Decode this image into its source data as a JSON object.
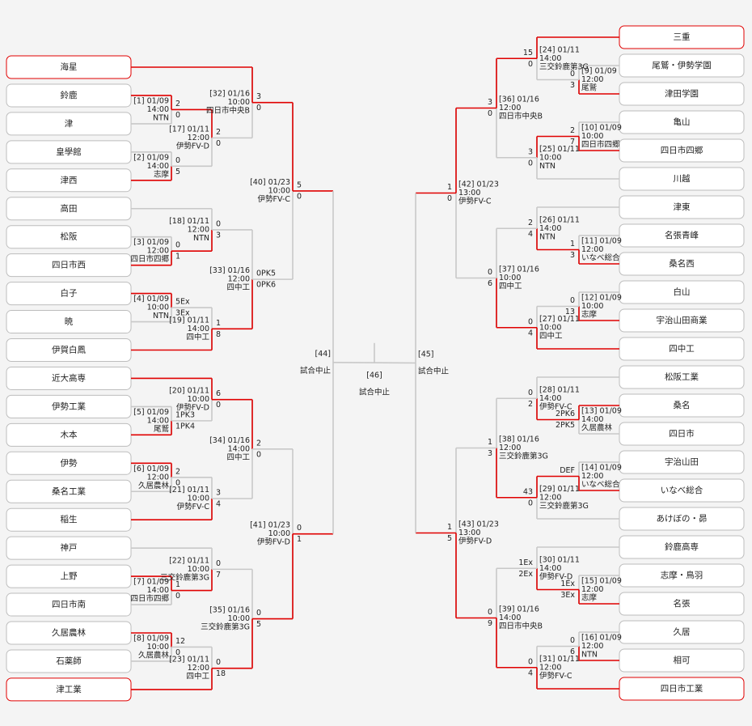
{
  "left": {
    "teams": [
      "海星",
      "鈴鹿",
      "津",
      "皇學館",
      "津西",
      "高田",
      "松阪",
      "四日市西",
      "白子",
      "暁",
      "伊賀白鳳",
      "近大高専",
      "伊勢工業",
      "木本",
      "伊勢",
      "桑名工業",
      "稲生",
      "神戸",
      "上野",
      "四日市南",
      "久居農林",
      "石薬師",
      "津工業"
    ],
    "matches": [
      {
        "lines": [
          "[1] 01/09",
          "14:00",
          "NTN"
        ],
        "scores": [
          "2",
          "0"
        ]
      },
      {
        "lines": [
          "[2] 01/09",
          "14:00",
          "志摩"
        ],
        "scores": [
          "0",
          "5"
        ]
      },
      {
        "lines": [
          "[17] 01/11",
          "12:00",
          "伊勢FV-D"
        ],
        "scores": [
          "2",
          "0"
        ]
      },
      {
        "lines": [
          "[32] 01/16",
          "10:00",
          "四日市中央B"
        ],
        "scores": [
          "3",
          "0"
        ]
      },
      {
        "lines": [
          "[3] 01/09",
          "12:00",
          "四日市四郷"
        ],
        "scores": [
          "0",
          "1"
        ]
      },
      {
        "lines": [
          "[18] 01/11",
          "12:00",
          "NTN"
        ],
        "scores": [
          "0",
          "3"
        ]
      },
      {
        "lines": [
          "[4] 01/09",
          "10:00",
          "NTN"
        ],
        "scores": [
          "5Ex",
          "3Ex"
        ]
      },
      {
        "lines": [
          "[19] 01/11",
          "14:00",
          "四中工"
        ],
        "scores": [
          "1",
          "8"
        ]
      },
      {
        "lines": [
          "[33] 01/16",
          "12:00",
          "四中工"
        ],
        "scores": [
          "0PK5",
          "0PK6"
        ]
      },
      {
        "lines": [
          "[40] 01/23",
          "10:00",
          "伊勢FV-C"
        ],
        "scores": [
          "5",
          "0"
        ]
      },
      {
        "lines": [
          "[5] 01/09",
          "14:00",
          "尾鷲"
        ],
        "scores": [
          "1PK3",
          "1PK4"
        ]
      },
      {
        "lines": [
          "[20] 01/11",
          "10:00",
          "伊勢FV-D"
        ],
        "scores": [
          "6",
          "0"
        ]
      },
      {
        "lines": [
          "[6] 01/09",
          "12:00",
          "久居農林"
        ],
        "scores": [
          "2",
          "0"
        ]
      },
      {
        "lines": [
          "[21] 01/11",
          "10:00",
          "伊勢FV-C"
        ],
        "scores": [
          "3",
          "4"
        ]
      },
      {
        "lines": [
          "[34] 01/16",
          "14:00",
          "四中工"
        ],
        "scores": [
          "2",
          "0"
        ]
      },
      {
        "lines": [
          "[7] 01/09",
          "14:00",
          "四日市四郷"
        ],
        "scores": [
          "1",
          "0"
        ]
      },
      {
        "lines": [
          "[22] 01/11",
          "10:00",
          "三交鈴鹿第3G"
        ],
        "scores": [
          "0",
          "7"
        ]
      },
      {
        "lines": [
          "[8] 01/09",
          "10:00",
          "久居農林"
        ],
        "scores": [
          "12",
          "0"
        ]
      },
      {
        "lines": [
          "[23] 01/11",
          "12:00",
          "四中工"
        ],
        "scores": [
          "0",
          "18"
        ]
      },
      {
        "lines": [
          "[35] 01/16",
          "10:00",
          "三交鈴鹿第3G"
        ],
        "scores": [
          "0",
          "5"
        ]
      },
      {
        "lines": [
          "[41] 01/23",
          "10:00",
          "伊勢FV-D"
        ],
        "scores": [
          "0",
          "1"
        ]
      },
      {
        "lines": [
          "[44]",
          "試合中止"
        ]
      }
    ]
  },
  "right": {
    "teams": [
      "三重",
      "尾鷲・伊勢学園",
      "津田学園",
      "亀山",
      "四日市四郷",
      "川越",
      "津東",
      "名張青峰",
      "桑名西",
      "白山",
      "宇治山田商業",
      "四中工",
      "松阪工業",
      "桑名",
      "四日市",
      "宇治山田",
      "いなべ総合",
      "あけぼの・昴",
      "鈴鹿高専",
      "志摩・鳥羽",
      "名張",
      "久居",
      "相可",
      "四日市工業"
    ],
    "matches": [
      {
        "lines": [
          "[9] 01/09",
          "12:00",
          "尾鷲"
        ],
        "scores": [
          "0",
          "3"
        ]
      },
      {
        "lines": [
          "[24] 01/11",
          "14:00",
          "三交鈴鹿第3G"
        ],
        "scores": [
          "15",
          "0"
        ]
      },
      {
        "lines": [
          "[10] 01/09",
          "10:00",
          "四日市四郷"
        ],
        "scores": [
          "2",
          "7"
        ]
      },
      {
        "lines": [
          "[25] 01/11",
          "10:00",
          "NTN"
        ],
        "scores": [
          "3",
          "0"
        ]
      },
      {
        "lines": [
          "[36] 01/16",
          "12:00",
          "四日市中央B"
        ],
        "scores": [
          "3",
          "0"
        ]
      },
      {
        "lines": [
          "[11] 01/09",
          "12:00",
          "いなべ総合"
        ],
        "scores": [
          "1",
          "3"
        ]
      },
      {
        "lines": [
          "[26] 01/11",
          "14:00",
          "NTN"
        ],
        "scores": [
          "2",
          "4"
        ]
      },
      {
        "lines": [
          "[12] 01/09",
          "10:00",
          "志摩"
        ],
        "scores": [
          "0",
          "13"
        ]
      },
      {
        "lines": [
          "[27] 01/11",
          "10:00",
          "四中工"
        ],
        "scores": [
          "0",
          "4"
        ]
      },
      {
        "lines": [
          "[37] 01/16",
          "10:00",
          "四中工"
        ],
        "scores": [
          "0",
          "6"
        ]
      },
      {
        "lines": [
          "[42] 01/23",
          "13:00",
          "伊勢FV-C"
        ],
        "scores": [
          "1",
          "0"
        ]
      },
      {
        "lines": [
          "[13] 01/09",
          "14:00",
          "久居農林"
        ],
        "scores": [
          "2PK6",
          "2PK5"
        ]
      },
      {
        "lines": [
          "[28] 01/11",
          "14:00",
          "伊勢FV-C"
        ],
        "scores": [
          "0",
          "2"
        ]
      },
      {
        "lines": [
          "[14] 01/09",
          "12:00",
          "いなべ総合"
        ],
        "scores": [
          "DEF"
        ]
      },
      {
        "lines": [
          "[29] 01/11",
          "12:00",
          "三交鈴鹿第3G"
        ],
        "scores": [
          "43",
          "0"
        ]
      },
      {
        "lines": [
          "[38] 01/16",
          "12:00",
          "三交鈴鹿第3G"
        ],
        "scores": [
          "1",
          "3"
        ]
      },
      {
        "lines": [
          "[15] 01/09",
          "12:00",
          "志摩"
        ],
        "scores": [
          "1Ex",
          "3Ex"
        ]
      },
      {
        "lines": [
          "[30] 01/11",
          "14:00",
          "伊勢FV-D"
        ],
        "scores": [
          "1Ex",
          "2Ex"
        ]
      },
      {
        "lines": [
          "[16] 01/09",
          "12:00",
          "NTN"
        ],
        "scores": [
          "0",
          "6"
        ]
      },
      {
        "lines": [
          "[31] 01/11",
          "12:00",
          "伊勢FV-C"
        ],
        "scores": [
          "0",
          "4"
        ]
      },
      {
        "lines": [
          "[39] 01/16",
          "14:00",
          "四日市中央B"
        ],
        "scores": [
          "0",
          "9"
        ]
      },
      {
        "lines": [
          "[43] 01/23",
          "13:00",
          "伊勢FV-D"
        ],
        "scores": [
          "1",
          "5"
        ]
      },
      {
        "lines": [
          "[45]",
          "試合中止"
        ]
      }
    ]
  },
  "final": {
    "lines": [
      "[46]",
      "試合中止"
    ]
  }
}
